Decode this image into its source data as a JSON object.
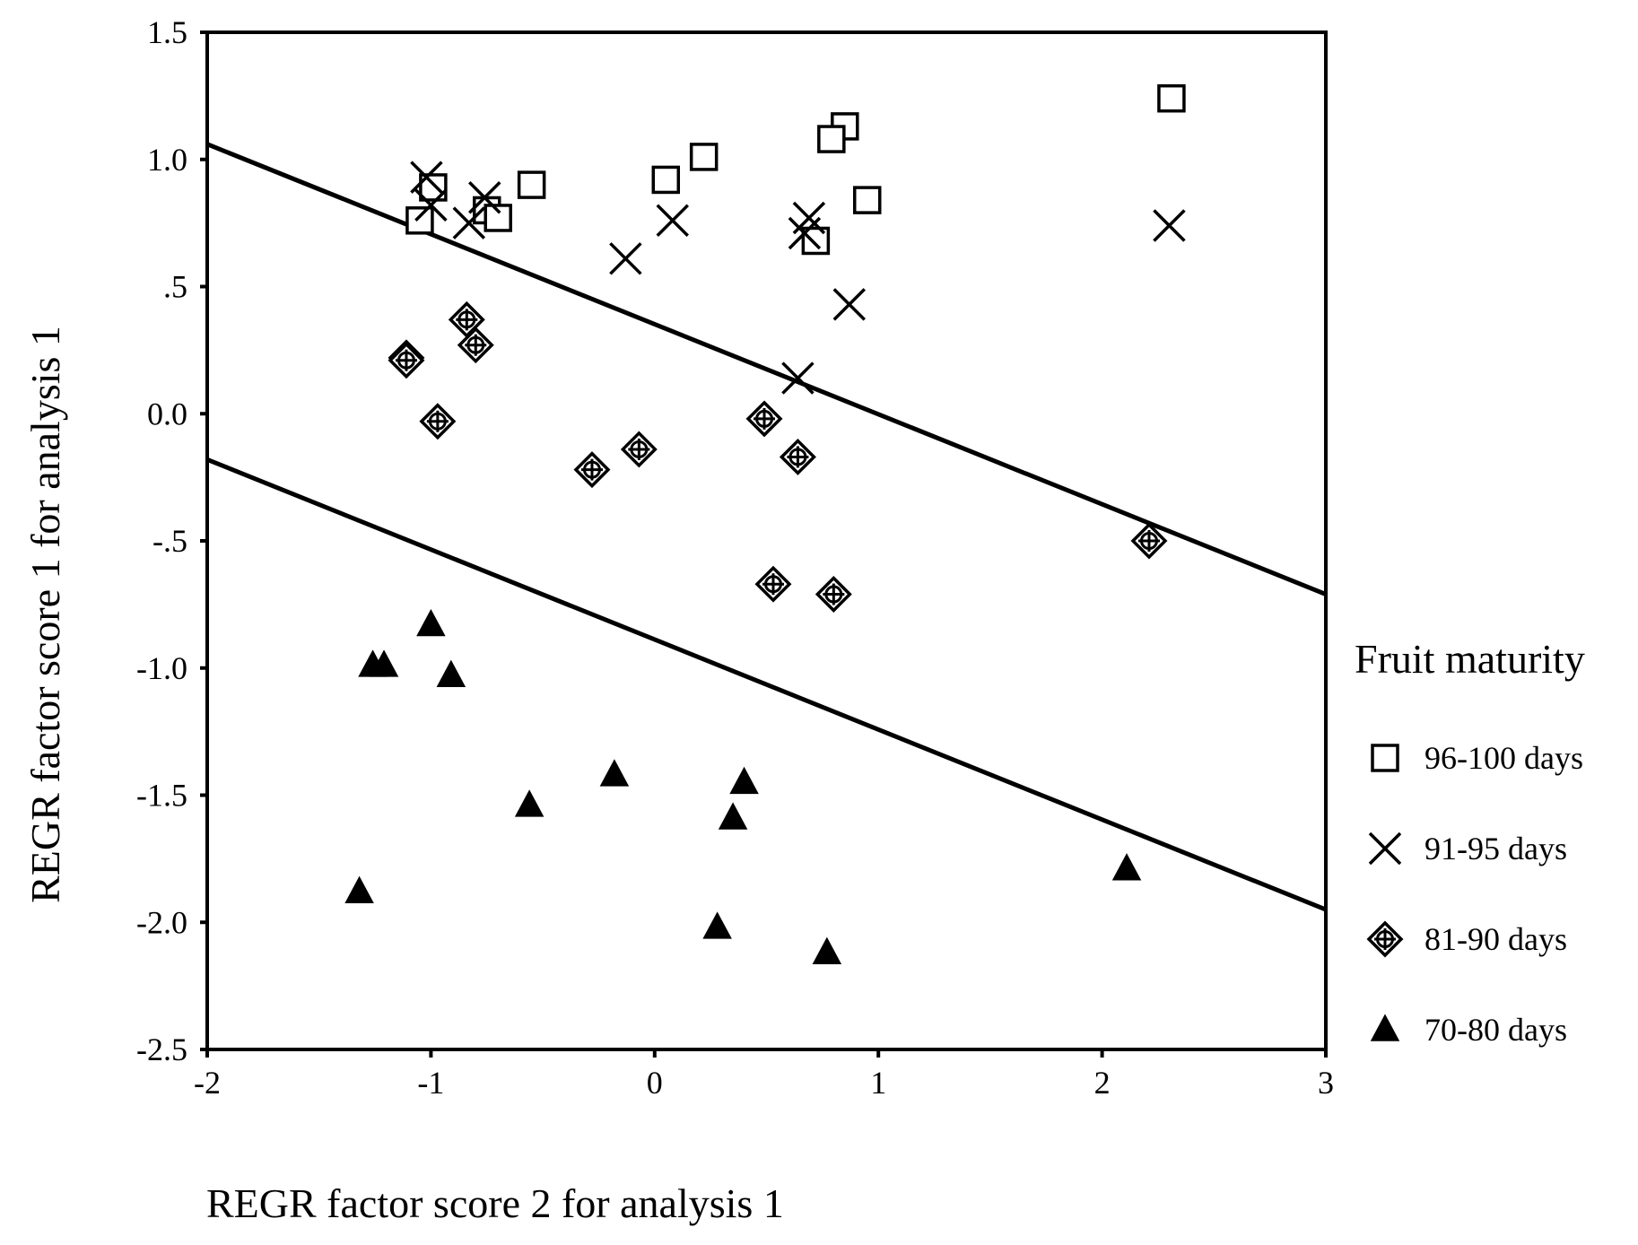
{
  "chart_data": {
    "type": "scatter",
    "xlabel": "REGR factor score 2 for analysis 1",
    "ylabel": "REGR factor score 1 for analysis 1",
    "xlim": [
      -2,
      3
    ],
    "ylim": [
      -2.5,
      1.5
    ],
    "xticks": [
      -2,
      -1,
      0,
      1,
      2,
      3
    ],
    "xtick_labels": [
      "-2",
      "-1",
      "0",
      "1",
      "2",
      "3"
    ],
    "yticks": [
      1.5,
      1.0,
      0.5,
      0.0,
      -0.5,
      -1.0,
      -1.5,
      -2.0,
      -2.5
    ],
    "ytick_labels": [
      "1.5",
      "1.0",
      ".5",
      "0.0",
      "-.5",
      "-1.0",
      "-1.5",
      "-2.0",
      "-2.5"
    ],
    "grid": false,
    "legend": {
      "title": "Fruit maturity",
      "position": "right"
    },
    "series": [
      {
        "name": "96-100 days",
        "marker": "open-square",
        "points": [
          [
            2.31,
            1.24
          ],
          [
            0.85,
            1.13
          ],
          [
            0.79,
            1.08
          ],
          [
            0.22,
            1.01
          ],
          [
            0.05,
            0.92
          ],
          [
            0.95,
            0.84
          ],
          [
            -0.55,
            0.9
          ],
          [
            -0.99,
            0.89
          ],
          [
            -0.75,
            0.8
          ],
          [
            -0.7,
            0.77
          ],
          [
            -1.05,
            0.76
          ],
          [
            0.72,
            0.68
          ]
        ]
      },
      {
        "name": "91-95 days",
        "marker": "x",
        "points": [
          [
            2.3,
            0.74
          ],
          [
            -1.02,
            0.93
          ],
          [
            -0.76,
            0.85
          ],
          [
            -1.0,
            0.82
          ],
          [
            -0.83,
            0.75
          ],
          [
            0.08,
            0.76
          ],
          [
            0.69,
            0.77
          ],
          [
            0.67,
            0.71
          ],
          [
            -0.13,
            0.61
          ],
          [
            0.87,
            0.43
          ],
          [
            0.64,
            0.14
          ]
        ]
      },
      {
        "name": "81-90 days",
        "marker": "crossed-diamond",
        "points": [
          [
            -0.84,
            0.37
          ],
          [
            -0.8,
            0.27
          ],
          [
            -1.11,
            0.22
          ],
          [
            -1.11,
            0.21
          ],
          [
            -0.97,
            -0.03
          ],
          [
            0.49,
            -0.02
          ],
          [
            -0.07,
            -0.14
          ],
          [
            0.64,
            -0.17
          ],
          [
            -0.28,
            -0.22
          ],
          [
            2.21,
            -0.5
          ],
          [
            0.53,
            -0.67
          ],
          [
            0.8,
            -0.71
          ]
        ]
      },
      {
        "name": "70-80 days",
        "marker": "filled-triangle",
        "points": [
          [
            -1.0,
            -0.83
          ],
          [
            -1.26,
            -0.99
          ],
          [
            -1.21,
            -0.99
          ],
          [
            -0.91,
            -1.03
          ],
          [
            -0.18,
            -1.42
          ],
          [
            0.4,
            -1.45
          ],
          [
            -0.56,
            -1.54
          ],
          [
            0.35,
            -1.59
          ],
          [
            -1.32,
            -1.88
          ],
          [
            0.28,
            -2.02
          ],
          [
            0.77,
            -2.12
          ],
          [
            2.11,
            -1.79
          ]
        ]
      }
    ],
    "lines": [
      {
        "x": [
          -2,
          3
        ],
        "y": [
          1.06,
          -0.71
        ]
      },
      {
        "x": [
          -2,
          3
        ],
        "y": [
          -0.18,
          -1.95
        ]
      }
    ]
  }
}
